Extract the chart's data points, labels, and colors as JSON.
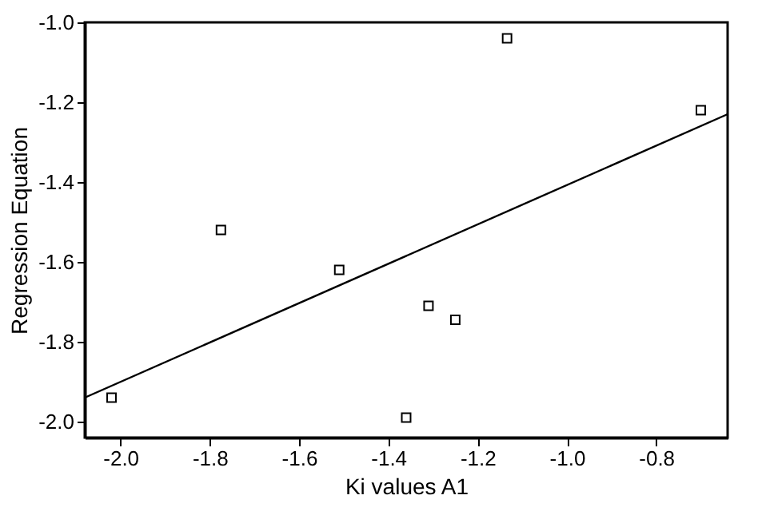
{
  "chart_data": {
    "type": "scatter",
    "xlabel": "Ki values A1",
    "ylabel": "Regression Equation",
    "xlim": [
      -2.08,
      -0.64
    ],
    "ylim": [
      -2.04,
      -1.0
    ],
    "xticks": [
      {
        "value": -2.0,
        "label": "-2.0"
      },
      -1.8,
      -1.6,
      -1.4,
      -1.2,
      {
        "value": -1.0,
        "label": "-1.0"
      },
      -0.8
    ],
    "yticks": [
      {
        "value": -2.0,
        "label": "-2.0"
      },
      -1.8,
      -1.6,
      -1.4,
      -1.2,
      {
        "value": -1.0,
        "label": "-1.0"
      }
    ],
    "grid": false,
    "marker": "square",
    "series": [
      {
        "color": "#000000",
        "x": [
          -2.02,
          -1.775,
          -1.51,
          -1.36,
          -1.31,
          -1.25,
          -1.134,
          -0.7
        ],
        "values": [
          -1.94,
          -1.52,
          -1.62,
          -1.99,
          -1.71,
          -1.745,
          -1.04,
          -1.22
        ]
      },
      {
        "type": "line",
        "color": "#000000",
        "x": [
          -2.08,
          -0.64
        ],
        "values": [
          -1.94,
          -1.23
        ],
        "line_style": "solid",
        "marker": "none"
      }
    ]
  }
}
